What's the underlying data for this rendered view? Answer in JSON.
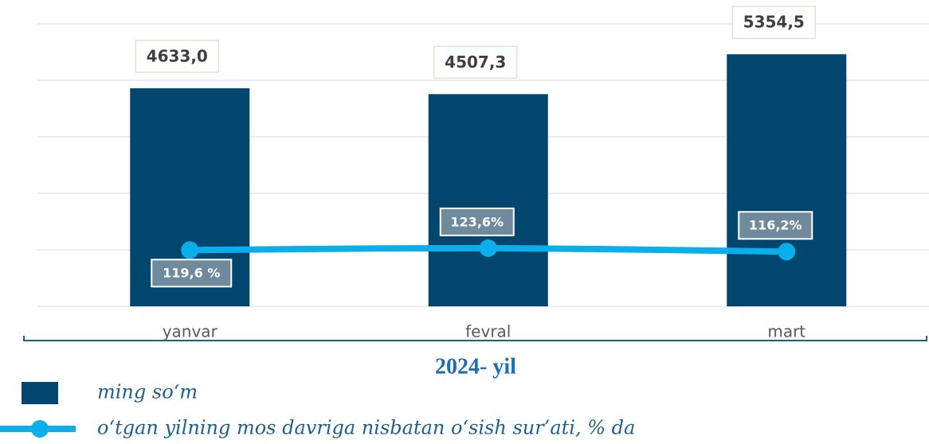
{
  "chart_data": {
    "type": "bar",
    "x_label": "2024- yil",
    "categories": [
      "yanvar",
      "fevral",
      "mart"
    ],
    "ylim": [
      0,
      6000
    ],
    "yticks": [
      0,
      1200,
      2400,
      3600,
      4800,
      6000
    ],
    "y2lim": [
      0,
      600
    ],
    "grid": true,
    "legend": "bottom",
    "series": [
      {
        "name": "ming so‘m",
        "type": "bar",
        "color": "#00466f",
        "values": [
          4633.0,
          4507.3,
          5354.5
        ],
        "value_labels": [
          "4633,0",
          "4507,3",
          "5354,5"
        ]
      },
      {
        "name": "o‘tgan yilning mos davriga nisbatan o‘sish sur’ati, % da",
        "type": "line",
        "axis": "y2",
        "color": "#0aaeea",
        "values": [
          119.6,
          123.6,
          116.2
        ],
        "value_labels": [
          "119,6 %",
          "123,6%",
          "116,2%"
        ]
      }
    ]
  }
}
